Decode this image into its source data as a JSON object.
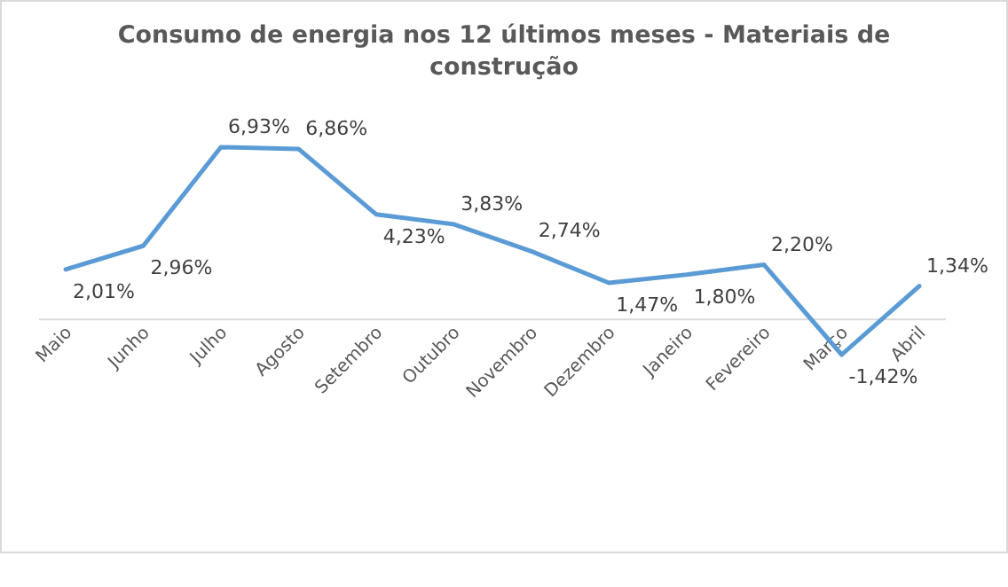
{
  "chart_data": {
    "type": "line",
    "title": "Consumo de energia nos 12 últimos meses - Materiais de construção",
    "categories": [
      "Maio",
      "Junho",
      "Julho",
      "Agosto",
      "Setembro",
      "Outubro",
      "Novembro",
      "Dezembro",
      "Janeiro",
      "Fevereiro",
      "Março",
      "Abril"
    ],
    "series": [
      {
        "color": "#5b9bd5",
        "values": [
          2.01,
          2.96,
          6.93,
          6.86,
          4.23,
          3.83,
          2.74,
          1.47,
          1.8,
          2.2,
          -1.42,
          1.34
        ],
        "value_labels": [
          "2,01%",
          "2,96%",
          "6,93%",
          "6,86%",
          "4,23%",
          "3,83%",
          "2,74%",
          "1,47%",
          "1,80%",
          "2,20%",
          "-1,42%",
          "1,34%"
        ]
      }
    ],
    "tick_labels": "x",
    "marker": "none",
    "line_style": "solid"
  }
}
